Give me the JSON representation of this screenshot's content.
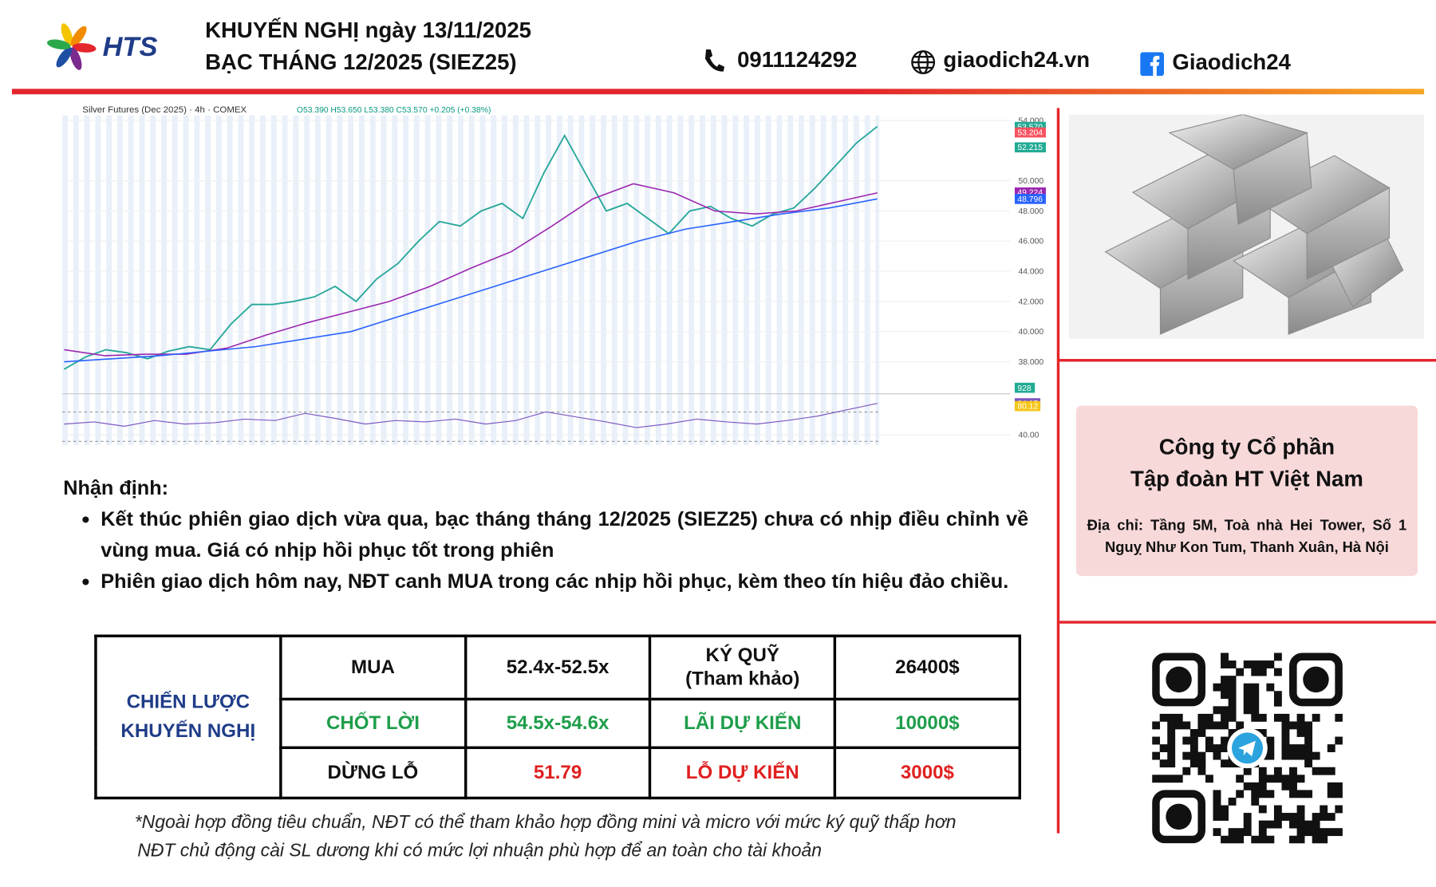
{
  "header": {
    "logo": "HTS",
    "title_line1": "KHUYẾN NGHỊ ngày 13/11/2025",
    "title_line2": "BẠC THÁNG 12/2025 (SIEZ25)",
    "phone": "0911124292",
    "website": "giaodich24.vn",
    "facebook": "Giaodich24"
  },
  "price_chart": {
    "type": "line",
    "title": "Silver Futures (Dec 2025) · 4h · COMEX",
    "ohlc": "O53.390 H53.650 L53.380 C53.570 +0.205 (+0.38%)",
    "ylim": [
      36,
      54.7
    ],
    "yticks": [
      {
        "value": 54,
        "label": "54.000"
      },
      {
        "value": 50,
        "label": "50.000"
      },
      {
        "value": 48,
        "label": "48.000"
      },
      {
        "value": 46,
        "label": "46.000"
      },
      {
        "value": 44,
        "label": "44.000"
      },
      {
        "value": 42,
        "label": "42.000"
      },
      {
        "value": 40,
        "label": "40.000"
      },
      {
        "value": 38,
        "label": "38.000"
      }
    ],
    "series": [
      {
        "color": "#26a69a",
        "values": [
          37.5,
          38.3,
          38.8,
          38.6,
          38.2,
          38.7,
          39.0,
          38.8,
          40.5,
          41.8,
          41.8,
          42.0,
          42.3,
          43.0,
          42.0,
          43.5,
          44.5,
          46.0,
          47.3,
          47.0,
          48.0,
          48.5,
          47.5,
          50.5,
          53.0,
          50.5,
          48.0,
          48.5,
          47.5,
          46.5,
          48.0,
          48.3,
          47.5,
          47.0,
          47.8,
          48.2,
          49.5,
          51.0,
          52.5,
          53.6
        ]
      },
      {
        "color": "#9c27b0",
        "values": [
          38.8,
          38.4,
          38.5,
          38.5,
          38.9,
          39.8,
          40.6,
          41.3,
          42.0,
          43.0,
          44.2,
          45.3,
          47.0,
          48.8,
          49.8,
          49.2,
          48.0,
          47.8,
          48.0,
          48.6,
          49.2
        ]
      },
      {
        "color": "#2962ff",
        "values": [
          38.0,
          38.2,
          38.4,
          38.7,
          39.0,
          39.5,
          40.0,
          41.0,
          42.0,
          43.0,
          44.0,
          45.0,
          46.0,
          46.8,
          47.3,
          47.8,
          48.2,
          48.8
        ]
      }
    ],
    "price_tags": [
      {
        "value": 53.57,
        "label": "53.570",
        "color": "#22ab94"
      },
      {
        "value": 53.204,
        "label": "53.204",
        "color": "#f7525f"
      },
      {
        "value": 52.215,
        "label": "52.215",
        "color": "#22ab94"
      },
      {
        "value": 49.224,
        "label": "49.224",
        "color": "#9c27b0"
      },
      {
        "value": 48.796,
        "label": "48.796",
        "color": "#2962ff"
      }
    ],
    "volume_label": "928",
    "rsi": {
      "ylim": [
        27,
        91
      ],
      "yticks": [
        {
          "value": 40,
          "label": "40.00"
        }
      ],
      "values": [
        55,
        58,
        52,
        60,
        55,
        57,
        62,
        60,
        70,
        63,
        55,
        60,
        58,
        62,
        55,
        60,
        72,
        65,
        58,
        50,
        55,
        62,
        58,
        55,
        60,
        66,
        75,
        84
      ],
      "tags": [
        {
          "value": 84.15,
          "label": "84.15",
          "color": "#7e57c2"
        },
        {
          "value": 80.12,
          "label": "80.12",
          "color": "#f5c518"
        }
      ]
    }
  },
  "analysis": {
    "heading": "Nhận định:",
    "bullets": [
      "Kết thúc phiên giao dịch vừa qua, bạc tháng tháng 12/2025 (SIEZ25) chưa có nhịp điều chỉnh về vùng mua. Giá có nhịp hồi phục tốt trong phiên",
      "Phiên giao dịch hôm nay, NĐT canh MUA trong các nhịp hồi phục, kèm theo tín hiệu đảo chiều."
    ]
  },
  "table": {
    "label": "CHIẾN LƯỢC KHUYẾN NGHỊ",
    "rows": [
      [
        "MUA",
        "52.4x-52.5x",
        "KÝ QUỸ\n(Tham khảo)",
        "26400$"
      ],
      [
        "CHỐT LỜI",
        "54.5x-54.6x",
        "LÃI DỰ KIẾN",
        "10000$"
      ],
      [
        "DỪNG LỖ",
        "51.79",
        "LỖ DỰ KIẾN",
        "3000$"
      ]
    ]
  },
  "company": {
    "name_line1": "Công ty Cổ phần",
    "name_line2": "Tập đoàn HT Việt Nam",
    "address": "Địa chỉ: Tầng 5M, Toà nhà Hei Tower, Số 1 Nguỵ Như Kon Tum, Thanh Xuân, Hà Nội"
  },
  "footnotes": [
    "*Ngoài hợp đồng tiêu chuẩn, NĐT có thể tham khảo hợp đồng mini và micro với mức ký quỹ thấp hơn",
    "NĐT chủ động cài SL dương khi có mức lợi nhuận phù hợp để an toàn cho tài khoản"
  ]
}
